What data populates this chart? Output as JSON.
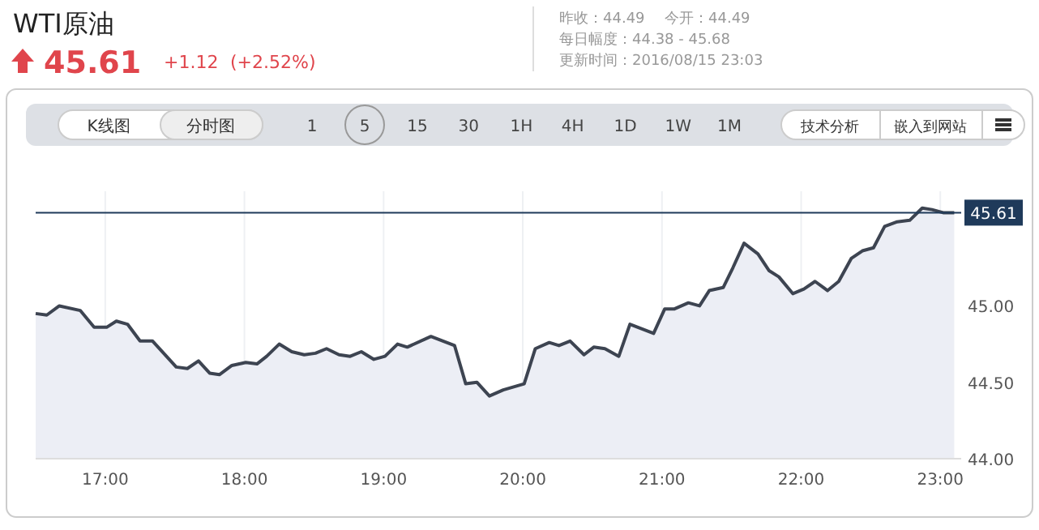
{
  "chart_data": {
    "type": "area",
    "title": "WTI原油",
    "annotations": [
      "45.61",
      "+1.12",
      "(+2.52%)",
      "昨收：44.49",
      "今开：44.49",
      "每日幅度：44.38 - 45.68",
      "更新时间：2016/08/15 23:03",
      "K线图",
      "分时图",
      "15",
      "30",
      "1H",
      "4H",
      "1D",
      "1W",
      "1M",
      "1",
      "5",
      "技术分析",
      "嵌入到网站"
    ],
    "x": [
      16.5,
      16.58,
      16.67,
      16.82,
      16.92,
      17.01,
      17.08,
      17.16,
      17.25,
      17.34,
      17.51,
      17.59,
      17.67,
      17.75,
      17.82,
      17.91,
      18.01,
      18.09,
      18.16,
      18.25,
      18.34,
      18.43,
      18.51,
      18.59,
      18.68,
      18.76,
      18.84,
      18.93,
      19.01,
      19.1,
      19.17,
      19.34,
      19.51,
      19.59,
      19.67,
      19.76,
      19.86,
      20.01,
      20.09,
      20.19,
      20.26,
      20.34,
      20.44,
      20.51,
      20.59,
      20.69,
      20.77,
      20.94,
      21.02,
      21.09,
      21.19,
      21.27,
      21.34,
      21.44,
      21.51,
      21.59,
      21.69,
      21.77,
      21.84,
      21.94,
      22.02,
      22.1,
      22.19,
      22.27,
      22.36,
      22.44,
      22.52,
      22.6,
      22.69,
      22.78,
      22.87,
      22.94,
      23.02,
      23.1
    ],
    "series": [
      {
        "color": "#3d4451",
        "values": [
          44.95,
          44.94,
          45.0,
          44.97,
          44.86,
          44.86,
          44.9,
          44.88,
          44.77,
          44.77,
          44.6,
          44.59,
          44.64,
          44.56,
          44.55,
          44.61,
          44.63,
          44.62,
          44.67,
          44.75,
          44.7,
          44.68,
          44.69,
          44.72,
          44.68,
          44.67,
          44.7,
          44.65,
          44.67,
          44.75,
          44.73,
          44.8,
          44.74,
          44.49,
          44.5,
          44.41,
          44.45,
          44.49,
          44.72,
          44.76,
          44.74,
          44.77,
          44.68,
          44.73,
          44.72,
          44.67,
          44.88,
          44.82,
          44.98,
          44.98,
          45.02,
          45.0,
          45.1,
          45.12,
          45.25,
          45.41,
          45.34,
          45.23,
          45.19,
          45.08,
          45.11,
          45.16,
          45.1,
          45.16,
          45.31,
          45.36,
          45.38,
          45.52,
          45.55,
          45.56,
          45.64,
          45.63,
          45.61,
          45.61
        ]
      }
    ],
    "xlim": [
      16.5,
      23.15
    ],
    "xticks": [
      {
        "value": 17,
        "label": "17:00"
      },
      {
        "value": 18,
        "label": "18:00"
      },
      {
        "value": 19,
        "label": "19:00"
      },
      {
        "value": 20,
        "label": "20:00"
      },
      {
        "value": 21,
        "label": "21:00"
      },
      {
        "value": 22,
        "label": "22:00"
      },
      {
        "value": 23,
        "label": "23:00"
      }
    ],
    "ylim": [
      44.0,
      45.75
    ],
    "yticks": [
      {
        "value": 44,
        "label": "44.00"
      },
      {
        "value": 44.5,
        "label": "44.50"
      },
      {
        "value": 45,
        "label": "45.00"
      }
    ],
    "ref_lines": [
      {
        "axis": "y",
        "value": 45.61,
        "label": "45.61",
        "color": "#1f3a5a"
      }
    ],
    "grid": "x"
  }
}
